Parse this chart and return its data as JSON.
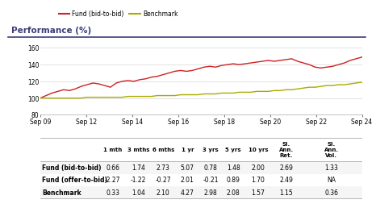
{
  "title": "Performance (%)",
  "title_color": "#3d3d7a",
  "title_underline_color": "#3d3d7a",
  "fund_color": "#cc2222",
  "benchmark_color": "#aaaa00",
  "x_labels": [
    "Sep 09",
    "Sep 12",
    "Sep 14",
    "Sep 16",
    "Sep 18",
    "Sep 20",
    "Sep 22",
    "Sep 24"
  ],
  "ylim": [
    80,
    165
  ],
  "yticks": [
    80,
    100,
    120,
    140,
    160
  ],
  "chart_bg": "#ffffff",
  "fund_data": [
    100,
    103,
    106,
    108,
    110,
    109,
    111,
    114,
    116,
    118,
    117,
    115,
    113,
    118,
    120,
    121,
    120,
    122,
    123,
    125,
    126,
    128,
    130,
    132,
    133,
    132,
    133,
    135,
    137,
    138,
    137,
    139,
    140,
    141,
    140,
    141,
    142,
    143,
    144,
    145,
    144,
    145,
    146,
    147,
    144,
    142,
    140,
    137,
    136,
    137,
    138,
    140,
    142,
    145,
    147,
    149
  ],
  "benchmark_data": [
    100,
    100,
    100,
    100,
    100,
    100,
    100,
    100,
    101,
    101,
    101,
    101,
    101,
    101,
    101,
    102,
    102,
    102,
    102,
    102,
    103,
    103,
    103,
    103,
    104,
    104,
    104,
    104,
    105,
    105,
    105,
    106,
    106,
    106,
    107,
    107,
    107,
    108,
    108,
    108,
    109,
    109,
    110,
    110,
    111,
    112,
    113,
    113,
    114,
    115,
    115,
    116,
    116,
    117,
    118,
    119
  ],
  "table_headers": [
    "",
    "1 mth",
    "3 mths",
    "6 mths",
    "1 yr",
    "3 yrs",
    "5 yrs",
    "10 yrs",
    "Sl.\nAnn.\nRet.",
    "Sl.\nAnn.\nVol."
  ],
  "table_rows": [
    [
      "Fund (bid-to-bid)",
      "0.66",
      "1.74",
      "2.73",
      "5.07",
      "0.78",
      "1.48",
      "2.00",
      "2.69",
      "1.33"
    ],
    [
      "Fund (offer-to-bid)",
      "-2.27",
      "-1.22",
      "-0.27",
      "2.01",
      "-0.21",
      "0.89",
      "1.70",
      "2.49",
      "NA"
    ],
    [
      "Benchmark",
      "0.33",
      "1.04",
      "2.10",
      "4.27",
      "2.98",
      "2.08",
      "1.57",
      "1.15",
      "0.36"
    ]
  ],
  "row_bg": [
    "#f5f5f5",
    "#ffffff",
    "#f5f5f5"
  ],
  "separator_color": "#aaaaaa",
  "bold_col0": true
}
